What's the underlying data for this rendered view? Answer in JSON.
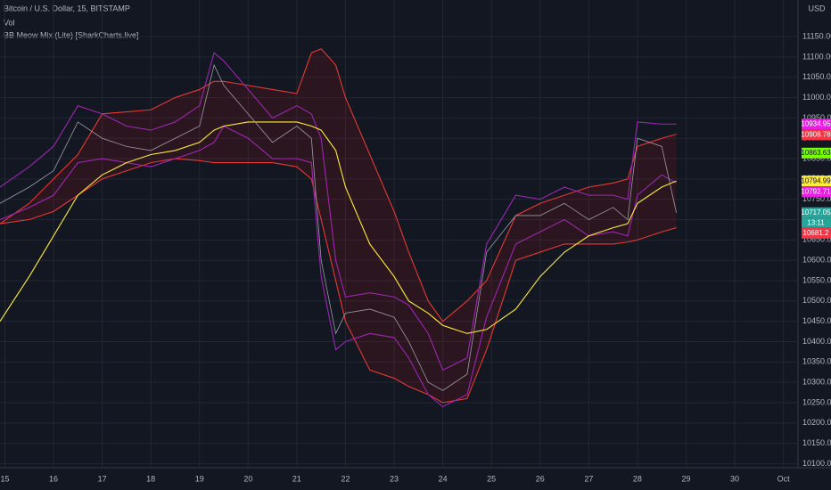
{
  "header": {
    "title": "Bitcoin / U.S. Dollar, 15, BITSTAMP",
    "indicators": [
      "Vol",
      "BB Meow Mix (Lite) [SharkCharts.live]"
    ],
    "currency": "USD"
  },
  "chart_data": {
    "type": "line",
    "x": [
      14.9,
      15.5,
      16.0,
      16.5,
      17.0,
      17.5,
      18.0,
      18.5,
      19.0,
      19.3,
      19.5,
      20.0,
      20.5,
      21.0,
      21.3,
      21.5,
      21.8,
      22.0,
      22.5,
      23.0,
      23.3,
      23.7,
      24.0,
      24.5,
      24.9,
      25.5,
      26.0,
      26.5,
      27.0,
      27.5,
      27.8,
      28.0,
      28.5,
      28.8
    ],
    "xlim": [
      14.9,
      31.3
    ],
    "xticks": [
      15,
      16,
      17,
      18,
      19,
      20,
      21,
      22,
      23,
      24,
      25,
      26,
      27,
      28,
      29,
      30,
      {
        "value": 31,
        "label": "Oct"
      }
    ],
    "ylim": [
      10090,
      11240
    ],
    "yticks": [
      {
        "value": 10100,
        "label": "10100.00"
      },
      {
        "value": 10150,
        "label": "10150.00"
      },
      {
        "value": 10200,
        "label": "10200.00"
      },
      {
        "value": 10250,
        "label": "10250.00"
      },
      {
        "value": 10300,
        "label": "10300.00"
      },
      {
        "value": 10350,
        "label": "10350.00"
      },
      {
        "value": 10400,
        "label": "10400.00"
      },
      {
        "value": 10450,
        "label": "10450.00"
      },
      {
        "value": 10500,
        "label": "10500.00"
      },
      {
        "value": 10550,
        "label": "10550.00"
      },
      {
        "value": 10600,
        "label": "10600.00"
      },
      {
        "value": 10650,
        "label": "10650.00"
      },
      {
        "value": 10700,
        "label": "10700.00"
      },
      {
        "value": 10750,
        "label": "10750.00"
      },
      {
        "value": 10800,
        "label": "10800.00"
      },
      {
        "value": 10850,
        "label": "10850.00"
      },
      {
        "value": 10900,
        "label": "10900.00"
      },
      {
        "value": 10950,
        "label": "10950.00"
      },
      {
        "value": 11000,
        "label": "11000.00"
      },
      {
        "value": 11050,
        "label": "11050.00"
      },
      {
        "value": 11100,
        "label": "11100.00"
      },
      {
        "value": 11150,
        "label": "11150.00"
      }
    ],
    "grid": true,
    "band_fill": "rgba(180,20,30,0.15)",
    "series": [
      {
        "color": "#e53935",
        "values": [
          10690,
          10740,
          10800,
          10860,
          10960,
          10965,
          10970,
          11000,
          11020,
          11040,
          11040,
          11030,
          11020,
          11010,
          11110,
          11120,
          11080,
          11000,
          10860,
          10720,
          10620,
          10500,
          10450,
          10500,
          10550,
          10710,
          10740,
          10760,
          10780,
          10790,
          10800,
          10880,
          10900,
          10910
        ]
      },
      {
        "color": "#e53935",
        "values": [
          10690,
          10700,
          10720,
          10760,
          10800,
          10820,
          10840,
          10850,
          10845,
          10840,
          10840,
          10840,
          10840,
          10830,
          10800,
          10700,
          10550,
          10450,
          10330,
          10310,
          10290,
          10270,
          10250,
          10260,
          10380,
          10600,
          10620,
          10640,
          10640,
          10640,
          10645,
          10650,
          10670,
          10680
        ]
      },
      {
        "color": "#9c27b0",
        "values": [
          10780,
          10830,
          10880,
          10980,
          10960,
          10930,
          10920,
          10940,
          10980,
          11110,
          11090,
          11020,
          10950,
          10980,
          10960,
          10900,
          10600,
          10510,
          10520,
          10510,
          10490,
          10420,
          10330,
          10360,
          10640,
          10760,
          10750,
          10780,
          10760,
          10760,
          10750,
          10940,
          10935,
          10935
        ]
      },
      {
        "color": "#9c27b0",
        "values": [
          10700,
          10730,
          10760,
          10840,
          10850,
          10840,
          10830,
          10850,
          10870,
          10890,
          10930,
          10900,
          10850,
          10850,
          10840,
          10560,
          10380,
          10400,
          10420,
          10410,
          10360,
          10270,
          10240,
          10270,
          10460,
          10640,
          10670,
          10700,
          10660,
          10670,
          10660,
          10760,
          10810,
          10790
        ]
      },
      {
        "color": "#ffeb3b",
        "values": [
          10450,
          10560,
          10660,
          10760,
          10810,
          10840,
          10860,
          10870,
          10890,
          10920,
          10930,
          10940,
          10940,
          10940,
          10930,
          10920,
          10870,
          10780,
          10640,
          10560,
          10500,
          10470,
          10440,
          10420,
          10430,
          10480,
          10560,
          10620,
          10660,
          10680,
          10690,
          10740,
          10780,
          10795
        ]
      },
      {
        "color": "#9e9aa6",
        "values": [
          10740,
          10780,
          10820,
          10940,
          10900,
          10880,
          10870,
          10900,
          10930,
          11080,
          11030,
          10960,
          10890,
          10930,
          10900,
          10600,
          10420,
          10470,
          10480,
          10460,
          10400,
          10300,
          10280,
          10320,
          10620,
          10710,
          10710,
          10740,
          10700,
          10730,
          10700,
          10900,
          10880,
          10717
        ]
      }
    ],
    "price_tags": [
      {
        "value": 10934.95,
        "color": "#e91ee3"
      },
      {
        "value": 10908.78,
        "color": "#f23645"
      },
      {
        "value": 10863.63,
        "color": "#76ff03"
      },
      {
        "value": 10794.99,
        "color": "#ffeb3b"
      },
      {
        "value": 10792.71,
        "color": "#e91ee3"
      },
      {
        "value": 10717.05,
        "color": "#26a69a"
      },
      {
        "value": 10681.2,
        "color": "#f23645"
      }
    ],
    "countdown": "13:11"
  }
}
